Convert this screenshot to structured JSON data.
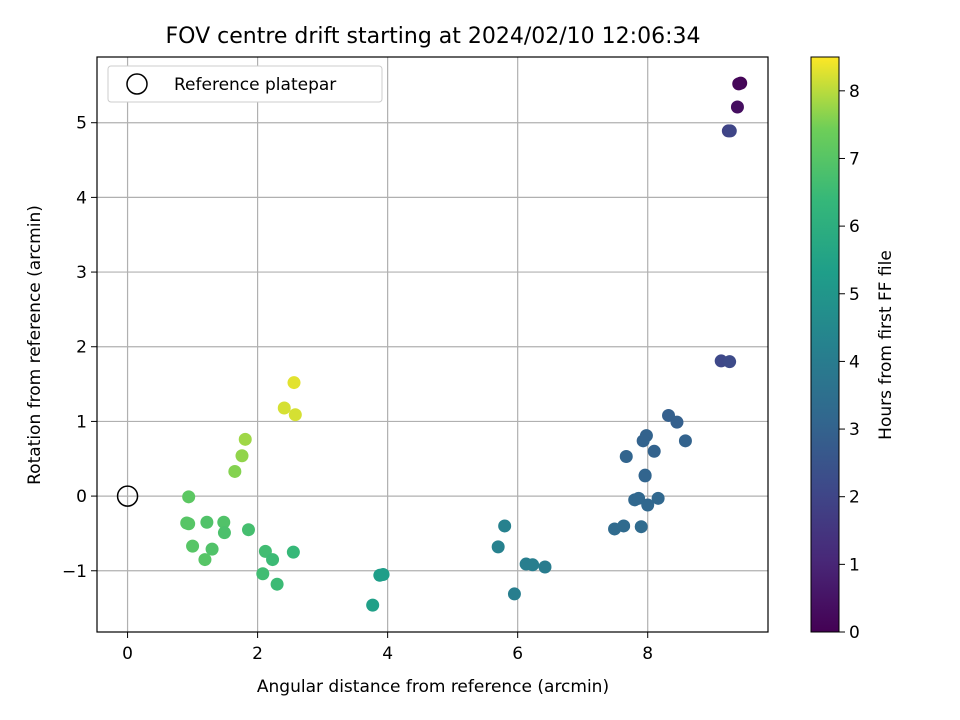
{
  "chart_data": {
    "type": "scatter",
    "title": "FOV centre drift starting at 2024/02/10 12:06:34",
    "xlabel": "Angular distance from reference (arcmin)",
    "ylabel": "Rotation from reference (arcmin)",
    "xlim": [
      -0.47,
      9.85
    ],
    "ylim": [
      -1.82,
      5.88
    ],
    "xticks": [
      0,
      2,
      4,
      6,
      8
    ],
    "yticks": [
      -1,
      0,
      1,
      2,
      3,
      4,
      5
    ],
    "xtick_labels": [
      "0",
      "2",
      "4",
      "6",
      "8"
    ],
    "ytick_labels": [
      "−1",
      "0",
      "1",
      "2",
      "3",
      "4",
      "5"
    ],
    "grid": true,
    "legend_position": "top-left",
    "legend": [
      {
        "label": "Reference platepar",
        "marker": "open-circle"
      }
    ],
    "reference_point": {
      "x": 0,
      "y": 0
    },
    "colorbar": {
      "label": "Hours from first FF file",
      "colormap": "viridis",
      "range": [
        0,
        8.5
      ],
      "ticks": [
        0,
        1,
        2,
        3,
        4,
        5,
        6,
        7,
        8
      ],
      "tick_labels": [
        "0",
        "1",
        "2",
        "3",
        "4",
        "5",
        "6",
        "7",
        "8"
      ]
    },
    "points": [
      {
        "x": 9.43,
        "y": 5.53,
        "c": 0.05
      },
      {
        "x": 9.4,
        "y": 5.52,
        "c": 0.15
      },
      {
        "x": 9.38,
        "y": 5.21,
        "c": 0.35
      },
      {
        "x": 9.24,
        "y": 4.89,
        "c": 1.9
      },
      {
        "x": 9.27,
        "y": 4.89,
        "c": 2.0
      },
      {
        "x": 9.13,
        "y": 1.81,
        "c": 2.1
      },
      {
        "x": 9.26,
        "y": 1.8,
        "c": 2.2
      },
      {
        "x": 8.32,
        "y": 1.08,
        "c": 2.9
      },
      {
        "x": 8.45,
        "y": 0.99,
        "c": 2.9
      },
      {
        "x": 8.58,
        "y": 0.74,
        "c": 3.0
      },
      {
        "x": 7.98,
        "y": 0.81,
        "c": 3.0
      },
      {
        "x": 7.93,
        "y": 0.74,
        "c": 3.0
      },
      {
        "x": 8.1,
        "y": 0.6,
        "c": 3.0
      },
      {
        "x": 7.67,
        "y": 0.53,
        "c": 3.1
      },
      {
        "x": 7.96,
        "y": 0.28,
        "c": 3.1
      },
      {
        "x": 7.96,
        "y": 0.27,
        "c": 3.1
      },
      {
        "x": 7.8,
        "y": -0.05,
        "c": 3.2
      },
      {
        "x": 7.86,
        "y": -0.03,
        "c": 3.2
      },
      {
        "x": 8.16,
        "y": -0.03,
        "c": 3.2
      },
      {
        "x": 8.0,
        "y": -0.12,
        "c": 3.2
      },
      {
        "x": 7.49,
        "y": -0.44,
        "c": 3.3
      },
      {
        "x": 7.63,
        "y": -0.4,
        "c": 3.3
      },
      {
        "x": 7.9,
        "y": -0.41,
        "c": 3.3
      },
      {
        "x": 5.8,
        "y": -0.4,
        "c": 4.2
      },
      {
        "x": 5.7,
        "y": -0.68,
        "c": 4.2
      },
      {
        "x": 6.13,
        "y": -0.91,
        "c": 4.1
      },
      {
        "x": 6.23,
        "y": -0.92,
        "c": 4.1
      },
      {
        "x": 6.42,
        "y": -0.95,
        "c": 4.0
      },
      {
        "x": 5.95,
        "y": -1.31,
        "c": 4.1
      },
      {
        "x": 3.88,
        "y": -1.06,
        "c": 5.3
      },
      {
        "x": 3.93,
        "y": -1.05,
        "c": 5.3
      },
      {
        "x": 3.77,
        "y": -1.46,
        "c": 5.4
      },
      {
        "x": 0.94,
        "y": -0.01,
        "c": 7.1
      },
      {
        "x": 0.91,
        "y": -0.36,
        "c": 7.0
      },
      {
        "x": 0.94,
        "y": -0.37,
        "c": 7.0
      },
      {
        "x": 1.22,
        "y": -0.35,
        "c": 6.9
      },
      {
        "x": 1.48,
        "y": -0.35,
        "c": 6.9
      },
      {
        "x": 1.49,
        "y": -0.49,
        "c": 6.8
      },
      {
        "x": 1.86,
        "y": -0.45,
        "c": 6.7
      },
      {
        "x": 1.0,
        "y": -0.67,
        "c": 7.0
      },
      {
        "x": 1.3,
        "y": -0.71,
        "c": 6.9
      },
      {
        "x": 1.19,
        "y": -0.85,
        "c": 7.0
      },
      {
        "x": 2.12,
        "y": -0.74,
        "c": 6.6
      },
      {
        "x": 2.23,
        "y": -0.85,
        "c": 6.5
      },
      {
        "x": 2.55,
        "y": -0.75,
        "c": 6.4
      },
      {
        "x": 2.08,
        "y": -1.04,
        "c": 6.6
      },
      {
        "x": 2.3,
        "y": -1.18,
        "c": 6.5
      },
      {
        "x": 1.65,
        "y": 0.33,
        "c": 7.6
      },
      {
        "x": 1.76,
        "y": 0.54,
        "c": 7.7
      },
      {
        "x": 1.81,
        "y": 0.76,
        "c": 7.8
      },
      {
        "x": 2.56,
        "y": 1.52,
        "c": 8.3
      },
      {
        "x": 2.41,
        "y": 1.18,
        "c": 8.2
      },
      {
        "x": 2.58,
        "y": 1.09,
        "c": 8.2
      }
    ]
  }
}
